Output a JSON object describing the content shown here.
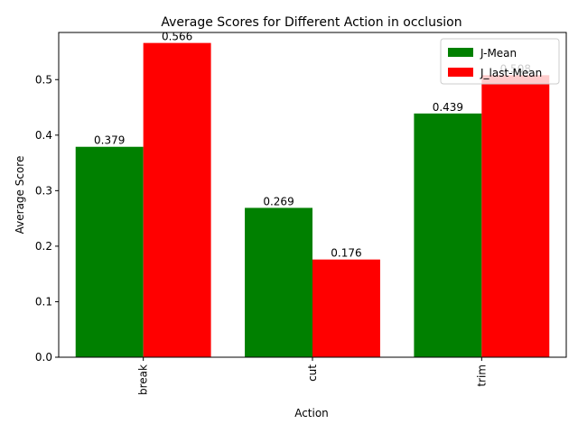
{
  "chart_data": {
    "type": "bar",
    "title": "Average Scores for Different Action in occlusion",
    "xlabel": "Action",
    "ylabel": "Average Score",
    "categories": [
      "break",
      "cut",
      "trim"
    ],
    "series": [
      {
        "name": "J-Mean",
        "color": "#008000",
        "values": [
          0.379,
          0.269,
          0.439
        ],
        "labels": [
          "0.379",
          "0.269",
          "0.439"
        ]
      },
      {
        "name": "J_last-Mean",
        "color": "#ff0000",
        "values": [
          0.566,
          0.176,
          0.508
        ],
        "labels": [
          "0.566",
          "0.176",
          "0.508"
        ]
      }
    ],
    "ylim": [
      0,
      0.5849
    ],
    "yticks": [
      0.0,
      0.1,
      0.2,
      0.3,
      0.4,
      0.5
    ],
    "ytick_labels": [
      "0.0",
      "0.1",
      "0.2",
      "0.3",
      "0.4",
      "0.5"
    ],
    "grid": false,
    "legend_position": "top-right"
  }
}
